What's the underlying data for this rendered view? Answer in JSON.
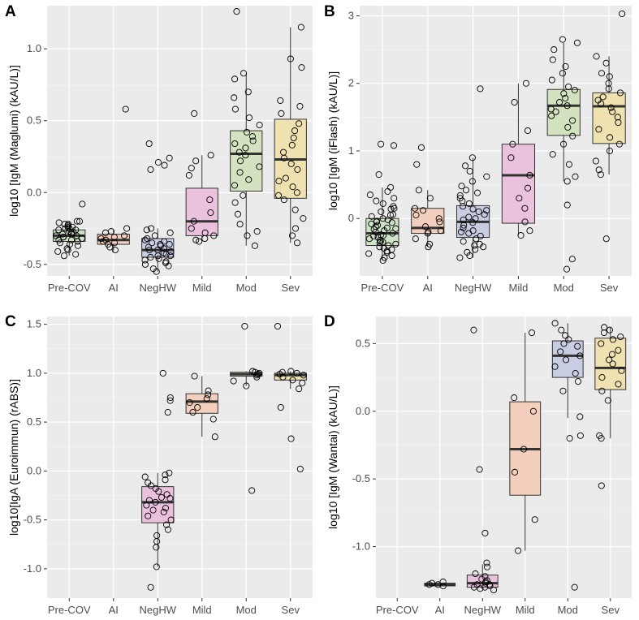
{
  "chart_data": [
    {
      "panel": "A",
      "type": "box",
      "ylabel": "log10 [IgM (Maglumi) (kAU/L)]",
      "categories": [
        "Pre-COV",
        "AI",
        "NegHW",
        "Mild",
        "Mod",
        "Sev"
      ],
      "ylim": [
        -0.58,
        1.3
      ],
      "yticks": [
        -0.5,
        0.0,
        0.5,
        1.0
      ],
      "ytick_labels": [
        "-0.5",
        "0.0",
        "0.5",
        "1.0"
      ],
      "colors": [
        "#cfe3c8",
        "#f4cfbd",
        "#c9cde3",
        "#ebc2de",
        "#d3e3bf",
        "#f0e1b0"
      ],
      "boxes": [
        {
          "q1": -0.34,
          "median": -0.3,
          "q3": -0.26,
          "lo": -0.44,
          "hi": -0.2
        },
        {
          "q1": -0.36,
          "median": -0.33,
          "q3": -0.29,
          "lo": -0.41,
          "hi": -0.26
        },
        {
          "q1": -0.45,
          "median": -0.4,
          "q3": -0.32,
          "lo": -0.55,
          "hi": -0.25
        },
        {
          "q1": -0.3,
          "median": -0.2,
          "q3": 0.03,
          "lo": -0.34,
          "hi": 0.26
        },
        {
          "q1": 0.01,
          "median": 0.27,
          "q3": 0.43,
          "lo": -0.37,
          "hi": 0.83
        },
        {
          "q1": -0.04,
          "median": 0.23,
          "q3": 0.51,
          "lo": -0.35,
          "hi": 1.15
        }
      ],
      "points": [
        [
          -0.43,
          -0.41,
          -0.39,
          -0.37,
          -0.35,
          -0.34,
          -0.33,
          -0.32,
          -0.31,
          -0.3,
          -0.3,
          -0.29,
          -0.28,
          -0.27,
          -0.26,
          -0.25,
          -0.24,
          -0.23,
          -0.22,
          -0.21,
          -0.2,
          -0.2,
          -0.22,
          -0.25,
          -0.28,
          -0.31,
          -0.33,
          -0.36,
          -0.4,
          -0.44,
          -0.08,
          -0.26,
          -0.29,
          -0.24
        ],
        [
          -0.4,
          -0.38,
          -0.36,
          -0.35,
          -0.34,
          -0.32,
          -0.3,
          -0.28,
          -0.27,
          -0.25,
          -0.33,
          -0.31,
          0.58
        ],
        [
          -0.55,
          -0.53,
          -0.51,
          -0.5,
          -0.48,
          -0.47,
          -0.46,
          -0.45,
          -0.44,
          -0.43,
          -0.42,
          -0.41,
          -0.4,
          -0.39,
          -0.38,
          -0.37,
          -0.36,
          -0.35,
          -0.34,
          -0.33,
          -0.32,
          -0.3,
          -0.28,
          -0.26,
          -0.25,
          0.16,
          0.19,
          0.21,
          0.24,
          0.34,
          -0.49,
          -0.44,
          -0.4,
          -0.36
        ],
        [
          -0.33,
          -0.3,
          -0.28,
          -0.25,
          -0.2,
          -0.14,
          -0.05,
          0.12,
          0.17,
          0.22,
          0.26,
          0.55,
          -0.34,
          -0.32
        ],
        [
          -0.37,
          -0.3,
          -0.27,
          -0.22,
          -0.15,
          -0.07,
          -0.02,
          0.05,
          0.09,
          0.14,
          0.18,
          0.22,
          0.26,
          0.31,
          0.36,
          0.42,
          0.47,
          0.52,
          0.58,
          0.66,
          0.7,
          0.79,
          0.83,
          1.26,
          0.28,
          0.34,
          0.39
        ],
        [
          -0.35,
          -0.3,
          -0.25,
          -0.18,
          -0.12,
          -0.05,
          0.0,
          0.04,
          0.1,
          0.16,
          0.2,
          0.24,
          0.28,
          0.33,
          0.38,
          0.43,
          0.48,
          0.55,
          0.6,
          0.64,
          0.87,
          0.93,
          1.15,
          -0.02,
          0.08
        ]
      ]
    },
    {
      "panel": "B",
      "type": "box",
      "ylabel": "log10 [IgM (iFlash) (kAU/L)]",
      "categories": [
        "Pre-COV",
        "AI",
        "NegHW",
        "Mild",
        "Mod",
        "Sev"
      ],
      "ylim": [
        -0.85,
        3.15
      ],
      "yticks": [
        0,
        1,
        2,
        3
      ],
      "ytick_labels": [
        "0",
        "1",
        "2",
        "3"
      ],
      "colors": [
        "#cfe3c8",
        "#f4cfbd",
        "#c9cde3",
        "#ebc2de",
        "#d3e3bf",
        "#f0e1b0"
      ],
      "boxes": [
        {
          "q1": -0.4,
          "median": -0.22,
          "q3": 0.0,
          "lo": -0.62,
          "hi": 0.46
        },
        {
          "q1": -0.22,
          "median": -0.14,
          "q3": 0.15,
          "lo": -0.42,
          "hi": 0.42
        },
        {
          "q1": -0.28,
          "median": -0.05,
          "q3": 0.19,
          "lo": -0.58,
          "hi": 0.9
        },
        {
          "q1": -0.07,
          "median": 0.64,
          "q3": 1.1,
          "lo": -0.25,
          "hi": 2.0
        },
        {
          "q1": 1.23,
          "median": 1.67,
          "q3": 1.91,
          "lo": 0.55,
          "hi": 2.6
        },
        {
          "q1": 1.11,
          "median": 1.66,
          "q3": 1.86,
          "lo": 0.65,
          "hi": 2.4
        }
      ],
      "points": [
        [
          -0.62,
          -0.58,
          -0.55,
          -0.52,
          -0.5,
          -0.48,
          -0.46,
          -0.44,
          -0.42,
          -0.4,
          -0.38,
          -0.36,
          -0.34,
          -0.32,
          -0.3,
          -0.28,
          -0.26,
          -0.24,
          -0.22,
          -0.2,
          -0.18,
          -0.16,
          -0.14,
          -0.12,
          -0.1,
          -0.08,
          -0.06,
          -0.04,
          -0.02,
          0.0,
          0.03,
          0.06,
          0.1,
          0.14,
          0.18,
          0.22,
          0.26,
          0.3,
          0.35,
          0.4,
          0.46,
          0.65,
          1.08,
          1.1,
          -0.35,
          -0.25,
          -0.15,
          -0.05,
          0.05,
          0.15
        ],
        [
          -0.42,
          -0.38,
          -0.3,
          -0.22,
          -0.18,
          -0.12,
          -0.05,
          0.05,
          0.12,
          0.15,
          0.3,
          0.42,
          0.8,
          1.05,
          -0.2,
          0.0
        ],
        [
          -0.58,
          -0.55,
          -0.5,
          -0.46,
          -0.42,
          -0.38,
          -0.34,
          -0.3,
          -0.26,
          -0.22,
          -0.18,
          -0.14,
          -0.1,
          -0.06,
          -0.02,
          0.02,
          0.06,
          0.1,
          0.14,
          0.18,
          0.22,
          0.26,
          0.3,
          0.34,
          0.38,
          0.42,
          0.48,
          0.55,
          0.62,
          0.7,
          0.78,
          0.9,
          1.92,
          -0.4,
          -0.2,
          0.0,
          0.12
        ],
        [
          -0.25,
          -0.18,
          -0.05,
          0.15,
          0.3,
          0.45,
          0.64,
          0.9,
          1.1,
          1.3,
          1.72,
          2.0
        ],
        [
          -0.75,
          -0.6,
          0.2,
          0.55,
          0.62,
          0.8,
          0.95,
          1.1,
          1.22,
          1.35,
          1.45,
          1.52,
          1.58,
          1.62,
          1.67,
          1.72,
          1.78,
          1.85,
          1.9,
          1.95,
          2.05,
          2.15,
          2.25,
          2.35,
          2.5,
          2.6,
          2.65
        ],
        [
          -0.3,
          0.65,
          0.72,
          0.85,
          1.0,
          1.1,
          1.2,
          1.32,
          1.42,
          1.5,
          1.58,
          1.64,
          1.7,
          1.75,
          1.8,
          1.86,
          1.92,
          2.0,
          2.1,
          2.15,
          2.3,
          2.4,
          3.03
        ]
      ]
    },
    {
      "panel": "C",
      "type": "box",
      "ylabel": "log10[IgA (Euroimmun) (rABS)]",
      "categories": [
        "Pre-COV",
        "AI",
        "NegHW",
        "Mild",
        "Mod",
        "Sev"
      ],
      "ylim": [
        -1.3,
        1.58
      ],
      "yticks": [
        -1.0,
        -0.5,
        0.0,
        0.5,
        1.0,
        1.5
      ],
      "ytick_labels": [
        "-1.0",
        "-0.5",
        "0.0",
        "0.5",
        "1.0",
        "1.5"
      ],
      "colors": [
        "#cfe3c8",
        "#f4cfbd",
        "#ebc2de",
        "#f4cfbd",
        "#d3e3bf",
        "#f0e1b0"
      ],
      "boxes": [
        null,
        null,
        {
          "q1": -0.53,
          "median": -0.32,
          "q3": -0.16,
          "lo": -0.98,
          "hi": -0.02
        },
        {
          "q1": 0.59,
          "median": 0.71,
          "q3": 0.79,
          "lo": 0.35,
          "hi": 0.97
        },
        {
          "q1": 0.97,
          "median": 0.99,
          "q3": 1.01,
          "lo": 0.87,
          "hi": 1.02
        },
        {
          "q1": 0.93,
          "median": 0.98,
          "q3": 1.0,
          "lo": 0.84,
          "hi": 1.02
        }
      ],
      "points": [
        [],
        [],
        [
          -1.19,
          -0.98,
          -0.78,
          -0.72,
          -0.66,
          -0.6,
          -0.55,
          -0.5,
          -0.46,
          -0.42,
          -0.38,
          -0.35,
          -0.32,
          -0.3,
          -0.27,
          -0.24,
          -0.21,
          -0.18,
          -0.15,
          -0.12,
          -0.09,
          -0.06,
          -0.04,
          -0.02,
          0.6,
          0.72,
          0.75,
          1.0,
          -0.4,
          -0.28
        ],
        [
          0.35,
          0.53,
          0.6,
          0.65,
          0.7,
          0.74,
          0.78,
          0.82,
          0.97
        ],
        [
          -0.2,
          0.87,
          0.92,
          0.96,
          0.98,
          0.99,
          1.0,
          1.01,
          1.02,
          1.48
        ],
        [
          0.02,
          0.33,
          0.65,
          0.84,
          0.9,
          0.93,
          0.96,
          0.98,
          0.99,
          1.0,
          1.01,
          1.02,
          1.48
        ]
      ]
    },
    {
      "panel": "D",
      "type": "box",
      "ylabel": "log10 [IgM (Wantai) (kAU/L)]",
      "categories": [
        "Pre-COV",
        "AI",
        "NegHW",
        "Mild",
        "Mod",
        "Sev"
      ],
      "ylim": [
        -1.38,
        0.7
      ],
      "yticks": [
        -1.0,
        -0.5,
        0.0,
        0.5
      ],
      "ytick_labels": [
        "-1.0",
        "-0.5",
        "0.0",
        "0.5"
      ],
      "colors": [
        "#cfe3c8",
        "#e3c4d6",
        "#ebc2de",
        "#f4cfbd",
        "#c9cde3",
        "#f0e1b0"
      ],
      "boxes": [
        null,
        {
          "q1": -1.29,
          "median": -1.28,
          "q3": -1.27,
          "lo": -1.29,
          "hi": -1.27
        },
        {
          "q1": -1.3,
          "median": -1.27,
          "q3": -1.21,
          "lo": -1.3,
          "hi": -1.13
        },
        {
          "q1": -0.62,
          "median": -0.28,
          "q3": 0.07,
          "lo": -1.03,
          "hi": 0.58
        },
        {
          "q1": 0.25,
          "median": 0.41,
          "q3": 0.52,
          "lo": -0.05,
          "hi": 0.65
        },
        {
          "q1": 0.16,
          "median": 0.32,
          "q3": 0.54,
          "lo": -0.2,
          "hi": 0.62
        }
      ],
      "points": [
        [],
        [
          -1.29,
          -1.28,
          -1.27,
          -1.28,
          -1.26
        ],
        [
          -1.32,
          -1.31,
          -1.3,
          -1.29,
          -1.28,
          -1.27,
          -1.26,
          -1.25,
          -1.24,
          -1.22,
          -1.2,
          -1.15,
          -1.12,
          -0.9,
          -0.43,
          0.6,
          -1.3,
          -1.28
        ],
        [
          -1.03,
          -0.8,
          -0.45,
          -0.28,
          0.0,
          0.1,
          0.58
        ],
        [
          -1.3,
          -0.2,
          -0.18,
          -0.04,
          0.15,
          0.22,
          0.28,
          0.33,
          0.38,
          0.41,
          0.44,
          0.48,
          0.5,
          0.53,
          0.56,
          0.6,
          0.65
        ],
        [
          -0.55,
          -0.2,
          -0.18,
          0.08,
          0.15,
          0.2,
          0.25,
          0.3,
          0.35,
          0.38,
          0.42,
          0.45,
          0.5,
          0.53,
          0.55,
          0.58,
          0.6,
          0.62
        ]
      ]
    }
  ]
}
